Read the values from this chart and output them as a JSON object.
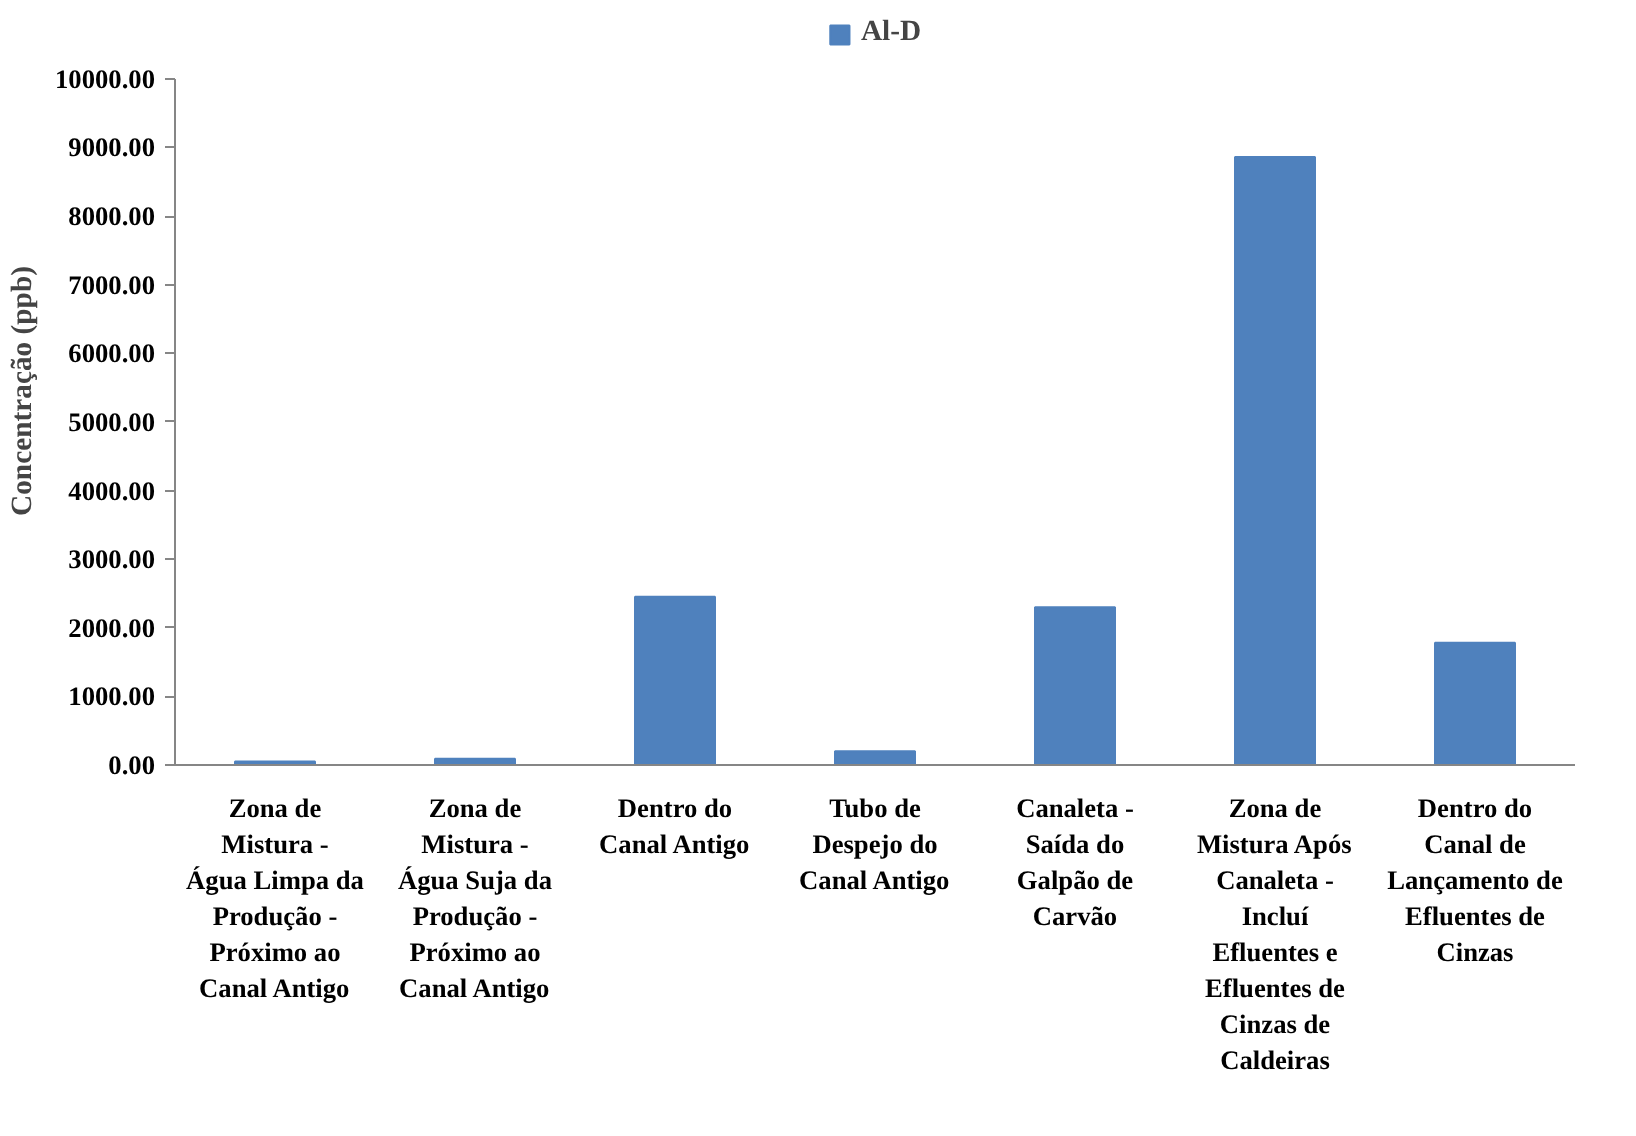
{
  "chart_data": {
    "type": "bar",
    "ylabel": "Concentração (ppb)",
    "categories": [
      "Zona de Mistura - Água Limpa da Produção - Próximo ao Canal Antigo",
      "Zona de Mistura - Água Suja da Produção - Próximo ao Canal Antigo",
      "Dentro do Canal Antigo",
      "Tubo de Despejo do Canal Antigo",
      "Canaleta - Saída do Galpão de Carvão",
      "Zona de Mistura Após Canaleta - Incluí Efluentes e Efluentes de Cinzas de Caldeiras",
      "Dentro do Canal de Lançamento de Efluentes de Cinzas"
    ],
    "series": [
      {
        "name": "Al-D",
        "color": "#4f81bd",
        "values": [
          50,
          90,
          2450,
          200,
          2300,
          8860,
          1780
        ]
      }
    ],
    "ylim": [
      0,
      10000
    ],
    "yticks": [
      {
        "value": 0,
        "label": "0.00"
      },
      {
        "value": 1000,
        "label": "1000.00"
      },
      {
        "value": 2000,
        "label": "2000.00"
      },
      {
        "value": 3000,
        "label": "3000.00"
      },
      {
        "value": 4000,
        "label": "4000.00"
      },
      {
        "value": 5000,
        "label": "5000.00"
      },
      {
        "value": 6000,
        "label": "6000.00"
      },
      {
        "value": 7000,
        "label": "7000.00"
      },
      {
        "value": 8000,
        "label": "8000.00"
      },
      {
        "value": 9000,
        "label": "9000.00"
      },
      {
        "value": 10000,
        "label": "10000.00"
      }
    ],
    "grid": false,
    "legend": "top"
  }
}
